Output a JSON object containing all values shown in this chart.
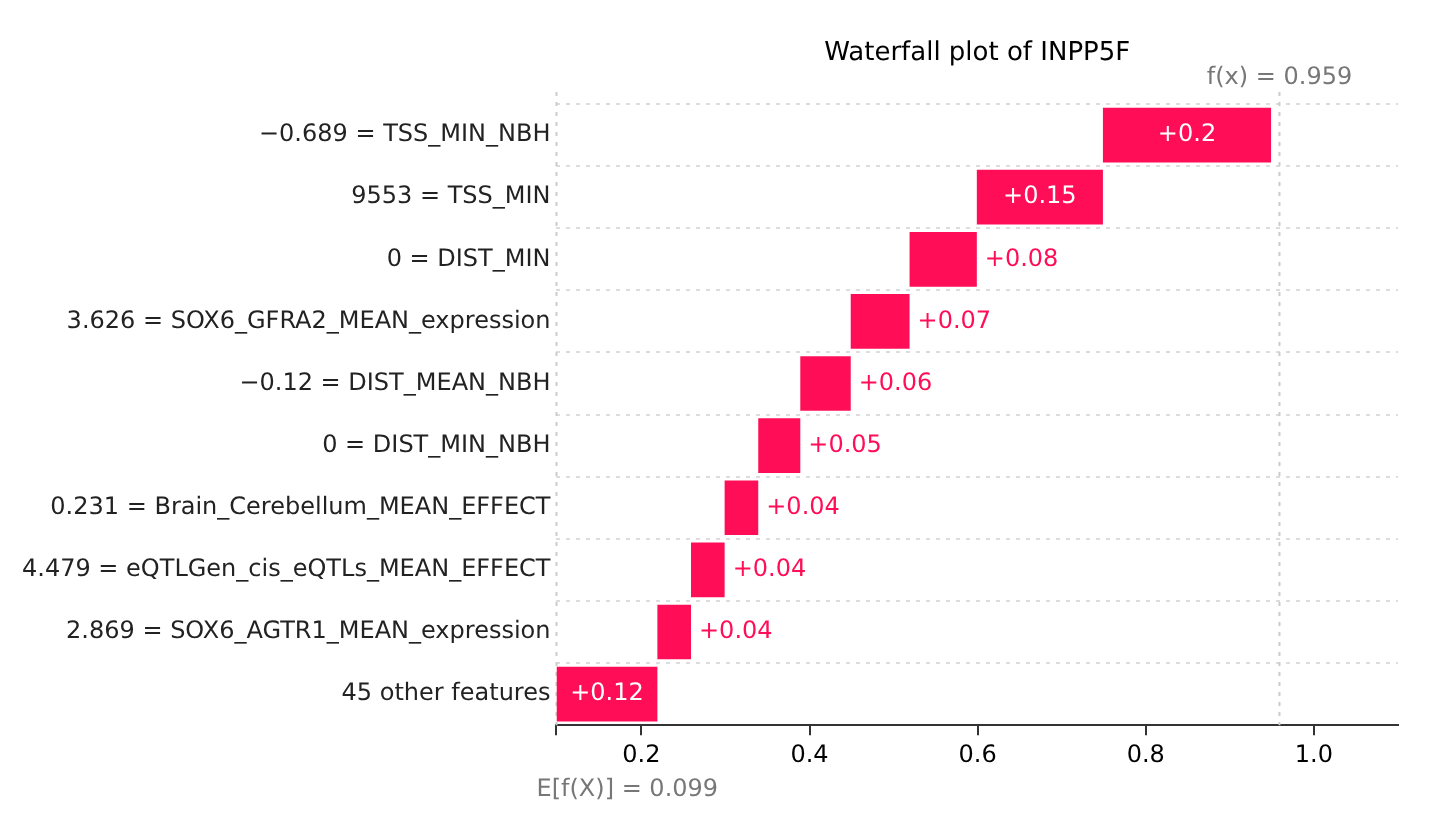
{
  "chart_data": {
    "type": "bar",
    "orientation": "horizontal",
    "title": "Waterfall plot of INPP5F",
    "categories": [
      "−0.689 = TSS_MIN_NBH",
      "9553 = TSS_MIN",
      "0 = DIST_MIN",
      "3.626 = SOX6_GFRA2_MEAN_expression",
      "−0.12 = DIST_MEAN_NBH",
      "0 = DIST_MIN_NBH",
      "0.231 = Brain_Cerebellum_MEAN_EFFECT",
      "4.479 = eQTLGen_cis_eQTLs_MEAN_EFFECT",
      "2.869 = SOX6_AGTR1_MEAN_expression",
      "45 other features"
    ],
    "values": [
      0.2,
      0.15,
      0.08,
      0.07,
      0.06,
      0.05,
      0.04,
      0.04,
      0.04,
      0.12
    ],
    "base": [
      0.749,
      0.599,
      0.519,
      0.449,
      0.389,
      0.339,
      0.299,
      0.259,
      0.219,
      0.099
    ],
    "value_labels": [
      "+0.2",
      "+0.15",
      "+0.08",
      "+0.07",
      "+0.06",
      "+0.05",
      "+0.04",
      "+0.04",
      "+0.04",
      "+0.12"
    ],
    "color": "#ff0d57",
    "xlim": [
      0.099,
      1.1
    ],
    "xticks": [
      {
        "value": 0.099,
        "label": null
      },
      {
        "value": 0.2,
        "label": "0.2"
      },
      {
        "value": 0.4,
        "label": "0.4"
      },
      {
        "value": 0.6,
        "label": "0.6"
      },
      {
        "value": 0.8,
        "label": "0.8"
      },
      {
        "value": 1.0,
        "label": "1.0"
      }
    ],
    "ref_lines": [
      {
        "axis": "x",
        "value": 0.959,
        "label": "f(x) = 0.959",
        "color": "#cccccc",
        "line_style": "dotted"
      },
      {
        "axis": "x",
        "value": 0.099,
        "label": "E[f(X)] = 0.099",
        "color": "#cccccc",
        "line_style": "dotted"
      }
    ],
    "grid": "y",
    "legend": false
  }
}
